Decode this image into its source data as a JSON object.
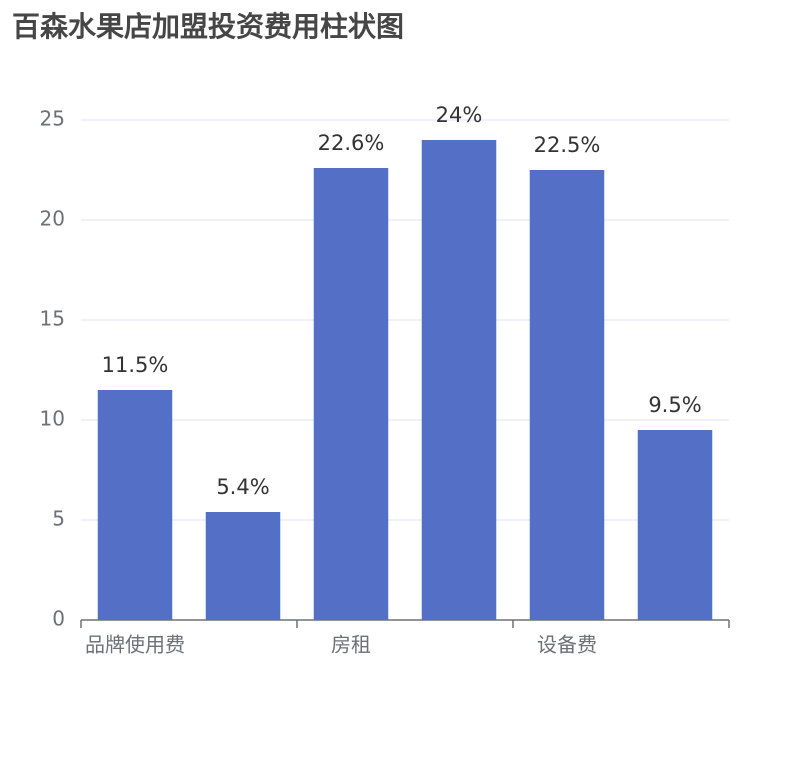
{
  "chart_data": {
    "type": "bar",
    "title": "百森水果店加盟投资费用柱状图",
    "categories": [
      "品牌使用费",
      null,
      "房租",
      null,
      "设备费",
      null
    ],
    "values": [
      11.5,
      5.4,
      22.6,
      24,
      22.5,
      9.5
    ],
    "value_labels": [
      "11.5%",
      "5.4%",
      "22.6%",
      "24%",
      "22.5%",
      "9.5%"
    ],
    "color": "#5470c6",
    "ylim": [
      0,
      25
    ],
    "yticks": [
      0,
      5,
      10,
      15,
      20,
      25
    ],
    "grid": true
  }
}
